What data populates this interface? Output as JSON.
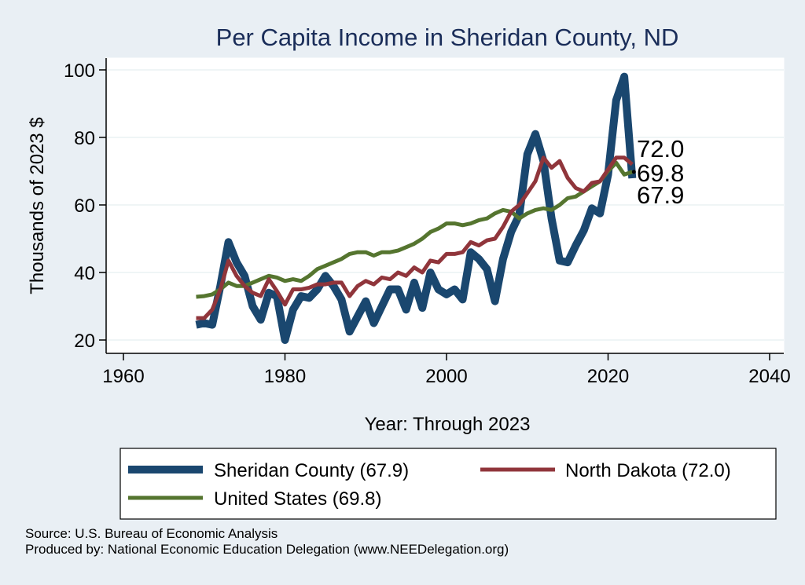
{
  "chart_data": {
    "type": "line",
    "title": "Per Capita Income in Sheridan County, ND",
    "xlabel": "Year: Through 2023",
    "ylabel": "Thousands of 2023 $",
    "xlim": [
      1960,
      2040
    ],
    "ylim": [
      20,
      100
    ],
    "x_ticks": [
      1960,
      1980,
      2000,
      2020,
      2040
    ],
    "y_ticks": [
      20,
      40,
      60,
      80,
      100
    ],
    "grid": "horizontal",
    "legend_position": "bottom",
    "x": [
      1969,
      1970,
      1971,
      1972,
      1973,
      1974,
      1975,
      1976,
      1977,
      1978,
      1979,
      1980,
      1981,
      1982,
      1983,
      1984,
      1985,
      1986,
      1987,
      1988,
      1989,
      1990,
      1991,
      1992,
      1993,
      1994,
      1995,
      1996,
      1997,
      1998,
      1999,
      2000,
      2001,
      2002,
      2003,
      2004,
      2005,
      2006,
      2007,
      2008,
      2009,
      2010,
      2011,
      2012,
      2013,
      2014,
      2015,
      2016,
      2017,
      2018,
      2019,
      2020,
      2021,
      2022,
      2023
    ],
    "series": [
      {
        "name": "Sheridan County (67.9)",
        "color": "#1a476f",
        "values": [
          24.5,
          25.0,
          24.5,
          36.0,
          49.0,
          43.0,
          39.0,
          30.0,
          26.0,
          34.0,
          33.0,
          20.0,
          29.0,
          33.0,
          32.5,
          35.0,
          39.0,
          36.0,
          32.0,
          22.5,
          27.0,
          31.5,
          25.0,
          30.0,
          35.0,
          35.0,
          29.0,
          37.0,
          29.5,
          40.0,
          35.0,
          33.5,
          35.0,
          32.0,
          46.0,
          44.0,
          41.0,
          31.5,
          44.0,
          52.0,
          57.0,
          75.0,
          81.0,
          73.0,
          56.0,
          43.5,
          43.0,
          48.0,
          52.5,
          59.0,
          57.5,
          69.0,
          91.0,
          98.0,
          67.9
        ]
      },
      {
        "name": "North Dakota (72.0)",
        "color": "#90353b",
        "values": [
          26.5,
          26.5,
          29.0,
          35.0,
          43.5,
          39.0,
          36.0,
          34.0,
          33.0,
          38.0,
          34.5,
          30.5,
          35.0,
          35.0,
          35.5,
          36.5,
          36.5,
          37.0,
          37.0,
          33.0,
          36.0,
          37.5,
          36.5,
          38.5,
          38.0,
          40.0,
          39.0,
          41.5,
          40.0,
          43.5,
          43.0,
          45.5,
          45.5,
          46.0,
          49.0,
          48.0,
          49.5,
          50.0,
          53.5,
          58.0,
          60.0,
          63.5,
          67.0,
          74.0,
          71.0,
          73.0,
          68.0,
          65.0,
          64.0,
          66.5,
          67.0,
          70.5,
          74.0,
          74.0,
          72.0
        ]
      },
      {
        "name": "United States (69.8)",
        "color": "#55752f",
        "values": [
          32.8,
          33.0,
          33.5,
          35.0,
          37.0,
          36.0,
          36.0,
          37.0,
          38.0,
          39.0,
          38.5,
          37.5,
          38.0,
          37.5,
          39.0,
          41.0,
          42.0,
          43.0,
          44.0,
          45.5,
          46.0,
          46.0,
          45.0,
          46.0,
          46.0,
          46.5,
          47.5,
          48.5,
          50.0,
          52.0,
          53.0,
          54.5,
          54.5,
          54.0,
          54.5,
          55.5,
          56.0,
          57.5,
          58.5,
          58.0,
          56.0,
          57.5,
          58.5,
          59.0,
          58.5,
          60.0,
          62.0,
          62.5,
          64.0,
          65.5,
          67.0,
          70.0,
          72.5,
          69.0,
          69.8
        ]
      }
    ],
    "end_labels": [
      "72.0",
      "69.8",
      "67.9"
    ]
  },
  "notes": {
    "source": "Source: U.S. Bureau of Economic Analysis",
    "produced": "Produced by: National Economic Education Delegation (www.NEEDelegation.org)"
  }
}
